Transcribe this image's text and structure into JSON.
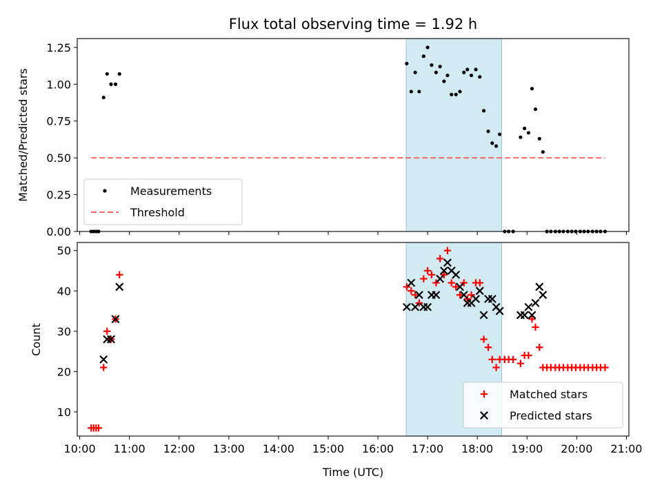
{
  "chart_data": {
    "type": "scatter",
    "title": "Flux total observing time = 1.92 h",
    "xlabel": "Time (UTC)",
    "xticks": [
      "10:00",
      "11:00",
      "12:00",
      "13:00",
      "14:00",
      "15:00",
      "16:00",
      "17:00",
      "18:00",
      "19:00",
      "20:00",
      "21:00"
    ],
    "xlim": [
      9.95,
      21.05
    ],
    "shaded_interval": {
      "start": 16.57,
      "end": 18.49,
      "color": "#add8e6"
    },
    "panels": [
      {
        "ylabel": "Matched/Predicted stars",
        "ylim": [
          0,
          1.31
        ],
        "yticks": [
          "0.00",
          "0.25",
          "0.50",
          "0.75",
          "1.00",
          "1.25"
        ],
        "legend_position": "lower-left",
        "series": [
          {
            "name": "Measurements",
            "marker": "dot",
            "color": "#000000",
            "x": [
              10.23,
              10.28,
              10.33,
              10.38,
              10.48,
              10.55,
              10.63,
              10.72,
              10.8,
              16.58,
              16.67,
              16.75,
              16.83,
              16.92,
              17.0,
              17.08,
              17.17,
              17.25,
              17.33,
              17.4,
              17.48,
              17.57,
              17.65,
              17.73,
              17.8,
              17.88,
              17.97,
              18.05,
              18.13,
              18.22,
              18.3,
              18.38,
              18.45,
              18.55,
              18.63,
              18.72,
              18.87,
              18.95,
              19.03,
              19.1,
              19.17,
              19.25,
              19.32,
              19.4,
              19.48,
              19.57,
              19.65,
              19.73,
              19.82,
              19.9,
              19.98,
              20.07,
              20.15,
              20.23,
              20.32,
              20.4,
              20.48,
              20.57
            ],
            "y": [
              0,
              0,
              0,
              0,
              0.91,
              1.07,
              1.0,
              1.0,
              1.07,
              1.14,
              0.95,
              1.08,
              0.95,
              1.19,
              1.25,
              1.13,
              1.08,
              1.12,
              1.02,
              1.06,
              0.93,
              0.93,
              0.95,
              1.08,
              1.1,
              1.06,
              1.1,
              1.05,
              0.82,
              0.68,
              0.6,
              0.58,
              0.66,
              0,
              0,
              0,
              0.64,
              0.7,
              0.67,
              0.97,
              0.83,
              0.63,
              0.54,
              0,
              0,
              0,
              0,
              0,
              0,
              0,
              0,
              0,
              0,
              0,
              0,
              0,
              0,
              0
            ]
          },
          {
            "name": "Threshold",
            "line_style": "dashed",
            "color": "#ff6666",
            "x": [
              10.23,
              20.57
            ],
            "y": [
              0.5,
              0.5
            ]
          }
        ]
      },
      {
        "ylabel": "Count",
        "ylim": [
          4,
          52
        ],
        "yticks": [
          "10",
          "20",
          "30",
          "40",
          "50"
        ],
        "legend_position": "lower-right",
        "series": [
          {
            "name": "Matched stars",
            "marker": "plus",
            "color": "#ff0000",
            "x": [
              10.23,
              10.28,
              10.33,
              10.38,
              10.48,
              10.55,
              10.63,
              10.72,
              10.8,
              16.58,
              16.67,
              16.75,
              16.83,
              16.92,
              17.0,
              17.08,
              17.17,
              17.25,
              17.33,
              17.4,
              17.48,
              17.57,
              17.65,
              17.73,
              17.8,
              17.88,
              17.97,
              18.05,
              18.13,
              18.22,
              18.3,
              18.38,
              18.45,
              18.55,
              18.63,
              18.72,
              18.87,
              18.95,
              19.03,
              19.1,
              19.17,
              19.25,
              19.32,
              19.4,
              19.48,
              19.57,
              19.65,
              19.73,
              19.82,
              19.9,
              19.98,
              20.07,
              20.15,
              20.23,
              20.32,
              20.4,
              20.48,
              20.57
            ],
            "y": [
              6,
              6,
              6,
              6,
              21,
              30,
              28,
              33,
              44,
              41,
              40,
              39,
              37,
              43,
              45,
              44,
              42,
              48,
              44,
              50,
              42,
              41,
              39,
              42,
              38,
              39,
              42,
              42,
              28,
              26,
              23,
              21,
              23,
              23,
              23,
              23,
              22,
              24,
              24,
              33,
              31,
              26,
              21,
              21,
              21,
              21,
              21,
              21,
              21,
              21,
              21,
              21,
              21,
              21,
              21,
              21,
              21,
              21
            ]
          },
          {
            "name": "Predicted stars",
            "marker": "x",
            "color": "#000000",
            "x": [
              10.48,
              10.55,
              10.63,
              10.72,
              10.8,
              16.58,
              16.67,
              16.75,
              16.83,
              16.92,
              17.0,
              17.08,
              17.17,
              17.25,
              17.33,
              17.4,
              17.48,
              17.57,
              17.65,
              17.73,
              17.8,
              17.88,
              17.97,
              18.05,
              18.13,
              18.22,
              18.3,
              18.38,
              18.45,
              18.87,
              18.95,
              19.03,
              19.1,
              19.17,
              19.25,
              19.32
            ],
            "y": [
              23,
              28,
              28,
              33,
              41,
              36,
              42,
              36,
              39,
              36,
              36,
              39,
              39,
              43,
              45,
              47,
              45,
              44,
              41,
              39,
              37,
              37,
              38,
              40,
              34,
              38,
              38,
              36,
              35,
              34,
              34,
              36,
              34,
              37,
              41,
              39
            ]
          }
        ]
      }
    ]
  }
}
